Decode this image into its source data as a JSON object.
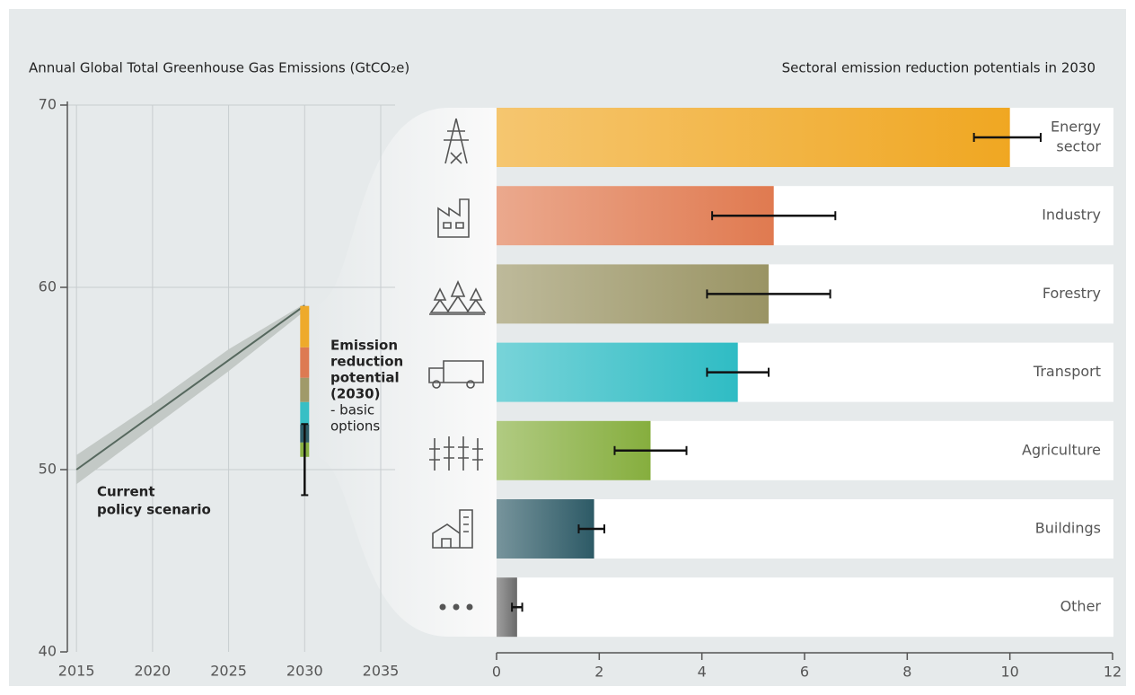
{
  "chart_data": [
    {
      "type": "line",
      "title": "Annual Global Total Greenhouse Gas Emissions (GtCO₂e)",
      "x": [
        2015,
        2020,
        2025,
        2030
      ],
      "values": [
        50,
        53,
        56,
        59
      ],
      "band_low": [
        49.2,
        52.3,
        55.4,
        58.7
      ],
      "band_high": [
        50.8,
        53.6,
        56.6,
        59.1
      ],
      "color": "#56685e",
      "band_color": "#c3c9c6",
      "xlim": [
        2014.4,
        2035
      ],
      "xticks": [
        2015,
        2020,
        2025,
        2030,
        2035
      ],
      "ylim": [
        40,
        70
      ],
      "yticks": [
        40,
        50,
        60,
        70
      ],
      "grid": true,
      "stack": {
        "x": 2030,
        "base": 50.7,
        "values": [
          0.79,
          0.99,
          1.23,
          1.33,
          1.67,
          2.27
        ],
        "colors": [
          "#88b043",
          "#2e5d68",
          "#37bfc5",
          "#a09a6a",
          "#dd7a52",
          "#eeaa2b"
        ]
      },
      "error_range": [
        48.6,
        52.5
      ],
      "scenario_label": [
        "Current",
        "policy scenario"
      ],
      "potential_label": {
        "bold": [
          "Emission",
          "reduction",
          "potential",
          "(2030)"
        ],
        "regular": [
          "- basic",
          "options"
        ]
      }
    },
    {
      "type": "hbar",
      "title": "Sectoral emission reduction potentials in 2030",
      "categories": [
        [
          "Energy",
          "sector"
        ],
        [
          "Industry"
        ],
        [
          "Forestry"
        ],
        [
          "Transport"
        ],
        [
          "Agriculture"
        ],
        [
          "Buildings"
        ],
        [
          "Other"
        ]
      ],
      "values": [
        10,
        5.4,
        5.3,
        4.7,
        3.0,
        1.9,
        0.4
      ],
      "error_ranges": [
        [
          9.3,
          10.6
        ],
        [
          4.2,
          6.6
        ],
        [
          4.1,
          6.5
        ],
        [
          4.1,
          5.3
        ],
        [
          2.3,
          3.7
        ],
        [
          1.6,
          2.1
        ],
        [
          0.3,
          0.5
        ]
      ],
      "colors": [
        "#f0a722",
        "#e07a50",
        "#9a9464",
        "#2fbcc4",
        "#86ae3e",
        "#2d5a66",
        "#6b6b6b"
      ],
      "xlim": [
        0,
        12
      ],
      "xticks": [
        0,
        2,
        4,
        6,
        8,
        10,
        12
      ]
    }
  ]
}
